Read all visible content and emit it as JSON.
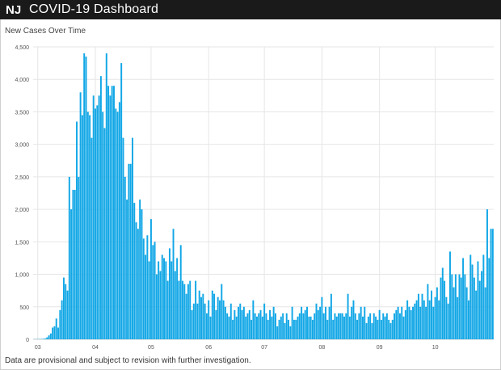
{
  "header": {
    "title": "COVID-19 Dashboard",
    "logo_text": "NJ",
    "logo_icon": "nj-state-logo-icon"
  },
  "footer": {
    "note": "Data are provisional and subject to revision with further investigation."
  },
  "colors": {
    "header_bg": "#1a1a1a",
    "bar": "#12a7e6",
    "grid": "#e6e6e6"
  },
  "chart_data": {
    "type": "bar",
    "title": "New Cases Over Time",
    "xlabel": "",
    "ylabel": "",
    "ylim": [
      0,
      4500
    ],
    "yticks": [
      {
        "value": 0,
        "label": "0"
      },
      {
        "value": 500,
        "label": "500"
      },
      {
        "value": 1000,
        "label": "1,000"
      },
      {
        "value": 1500,
        "label": "1,500"
      },
      {
        "value": 2000,
        "label": "2,000"
      },
      {
        "value": 2500,
        "label": "2,500"
      },
      {
        "value": 3000,
        "label": "3,000"
      },
      {
        "value": 3500,
        "label": "3,500"
      },
      {
        "value": 4000,
        "label": "4,000"
      },
      {
        "value": 4500,
        "label": "4,500"
      }
    ],
    "grid": true,
    "legend": "none",
    "xticks": [
      {
        "date": "2020-03-01",
        "label": "03"
      },
      {
        "date": "2020-04-01",
        "label": "04"
      },
      {
        "date": "2020-05-01",
        "label": "05"
      },
      {
        "date": "2020-06-01",
        "label": "06"
      },
      {
        "date": "2020-07-01",
        "label": "07"
      },
      {
        "date": "2020-08-01",
        "label": "08"
      },
      {
        "date": "2020-09-01",
        "label": "09"
      },
      {
        "date": "2020-10-01",
        "label": "10"
      }
    ],
    "start_date": "2020-02-28",
    "series": [
      {
        "values": [
          2,
          3,
          4,
          4,
          5,
          8,
          12,
          30,
          60,
          90,
          180,
          200,
          320,
          180,
          450,
          600,
          950,
          850,
          750,
          2500,
          2000,
          2300,
          2300,
          3350,
          2500,
          3800,
          3450,
          4400,
          4350,
          3500,
          3450,
          3100,
          3750,
          3550,
          3600,
          3750,
          4050,
          3500,
          3250,
          4400,
          3900,
          3750,
          3900,
          3900,
          3550,
          3500,
          3650,
          4250,
          3100,
          2500,
          2150,
          2700,
          2700,
          3100,
          2100,
          1800,
          1700,
          2150,
          2000,
          1550,
          1300,
          1600,
          1200,
          1850,
          1450,
          1500,
          1000,
          1200,
          1050,
          1300,
          1250,
          1200,
          900,
          1400,
          1200,
          1700,
          1050,
          1250,
          900,
          1450,
          900,
          850,
          700,
          850,
          900,
          450,
          550,
          900,
          550,
          750,
          650,
          700,
          550,
          400,
          600,
          350,
          750,
          700,
          450,
          650,
          600,
          850,
          600,
          500,
          400,
          350,
          550,
          300,
          450,
          350,
          500,
          550,
          450,
          500,
          350,
          400,
          450,
          300,
          600,
          400,
          350,
          400,
          450,
          350,
          550,
          400,
          300,
          450,
          350,
          500,
          400,
          200,
          300,
          350,
          400,
          250,
          400,
          300,
          200,
          500,
          300,
          300,
          350,
          400,
          500,
          400,
          450,
          500,
          350,
          350,
          300,
          400,
          550,
          450,
          500,
          650,
          400,
          500,
          300,
          500,
          700,
          300,
          400,
          350,
          400,
          400,
          400,
          350,
          400,
          700,
          350,
          500,
          600,
          400,
          300,
          400,
          500,
          350,
          500,
          250,
          350,
          400,
          250,
          400,
          350,
          300,
          450,
          300,
          400,
          350,
          400,
          300,
          250,
          300,
          400,
          450,
          500,
          400,
          500,
          350,
          450,
          600,
          500,
          450,
          500,
          550,
          600,
          700,
          500,
          700,
          600,
          500,
          850,
          600,
          750,
          500,
          650,
          800,
          600,
          950,
          1100,
          900,
          650,
          550,
          1350,
          1000,
          800,
          1000,
          650,
          1000,
          950,
          1250,
          1000,
          800,
          600,
          1300,
          1150,
          950,
          750,
          1200,
          900,
          1050,
          1300,
          800,
          2000,
          1250,
          1700,
          1700
        ]
      }
    ]
  }
}
